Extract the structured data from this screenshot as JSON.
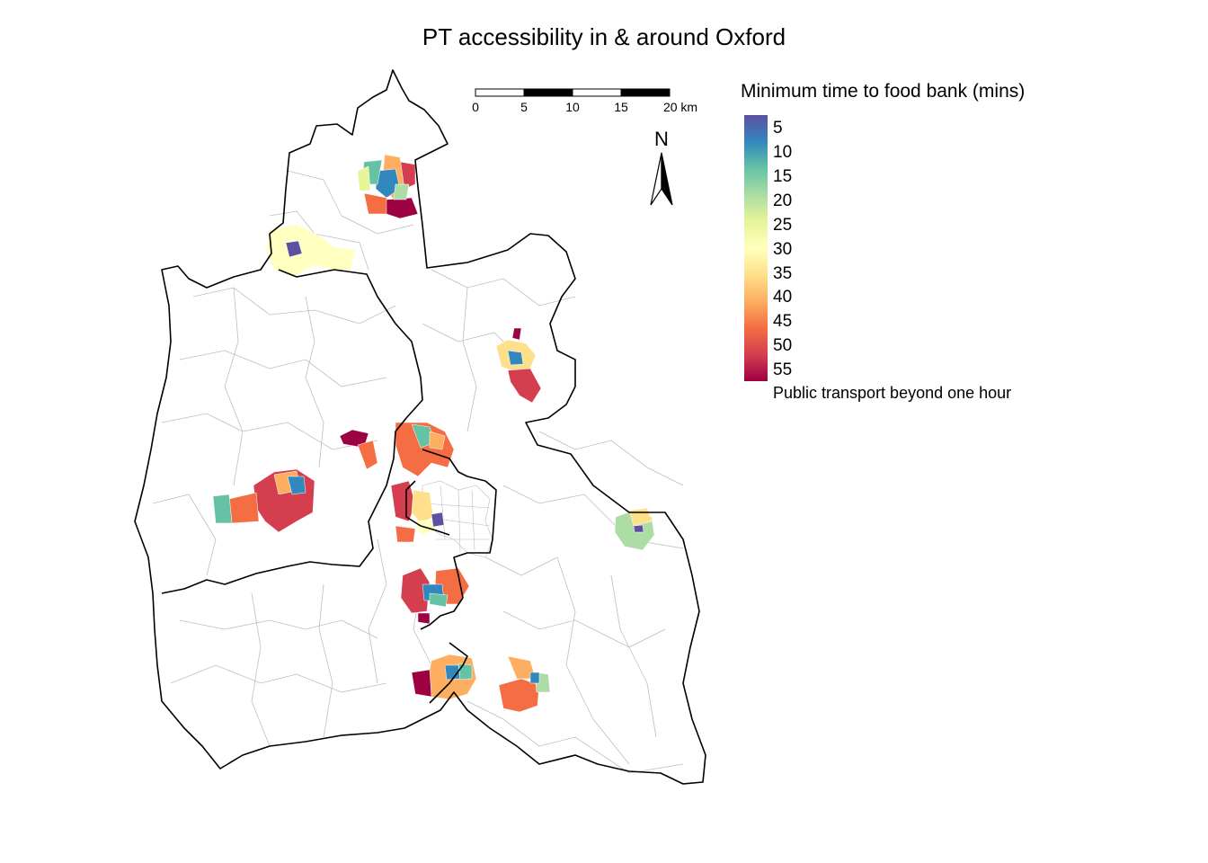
{
  "title": "PT accessibility in & around Oxford",
  "legend": {
    "title": "Minimum time to food bank (mins)",
    "ticks": [
      "5",
      "10",
      "15",
      "20",
      "25",
      "30",
      "35",
      "40",
      "45",
      "50",
      "55"
    ],
    "na_label": "Public transport beyond one hour",
    "colors": [
      "#5E4FA2",
      "#3288BD",
      "#66C2A5",
      "#ABDDA4",
      "#E6F598",
      "#FFFFBF",
      "#FEE08B",
      "#FDAE61",
      "#F46D43",
      "#D53E4F",
      "#9E0142"
    ]
  },
  "scale_bar": {
    "labels": [
      "0",
      "5",
      "10",
      "15",
      "20 km"
    ]
  },
  "north_arrow": {
    "label": "N"
  },
  "colors": {
    "boundary": "#000000",
    "ward_lines": "#bdbdbd",
    "background": "#ffffff"
  }
}
